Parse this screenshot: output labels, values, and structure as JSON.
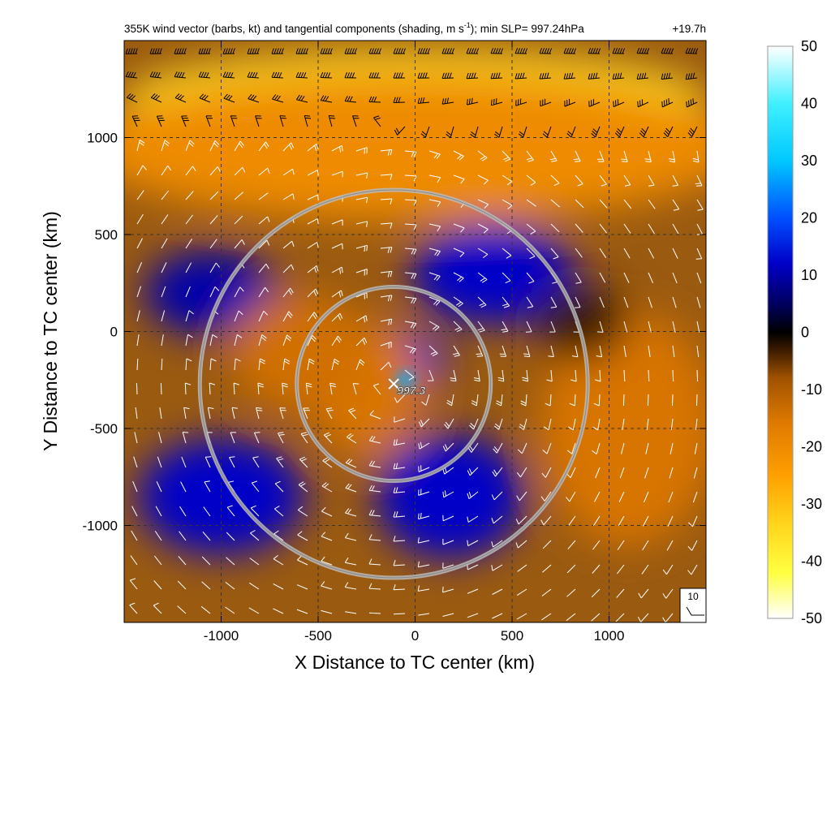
{
  "chart_data": {
    "type": "heatmap",
    "title": "355K wind vector (barbs, kt) and tangential components (shading, m s",
    "title_sup": "-1",
    "title_tail": "); min SLP= 997.24hPa",
    "forecast_hour": "+19.7h",
    "xlabel": "X Distance to TC center (km)",
    "ylabel": "Y Distance to TC center (km)",
    "xlim": [
      -1500,
      1500
    ],
    "ylim": [
      -1500,
      1500
    ],
    "xticks": [
      -1000,
      -500,
      0,
      500,
      1000
    ],
    "xtick_labels": [
      "-1000",
      "-500",
      "0",
      "500",
      "1000"
    ],
    "yticks": [
      -1000,
      -500,
      0,
      500,
      1000
    ],
    "ytick_labels": [
      "-1000",
      "-500",
      "0",
      "500",
      "1000"
    ],
    "grid": true,
    "colorbar": {
      "min": -50,
      "max": 50,
      "ticks": [
        50,
        40,
        30,
        20,
        10,
        0,
        -10,
        -20,
        -30,
        -40,
        -50
      ],
      "tick_labels": [
        "50",
        "40",
        "30",
        "20",
        "10",
        "0",
        "-10",
        "-20",
        "-30",
        "-40",
        "-50"
      ],
      "colors": [
        {
          "value": -50,
          "color": "#ffffff"
        },
        {
          "value": -42,
          "color": "#ffff40"
        },
        {
          "value": -33,
          "color": "#ffd21a"
        },
        {
          "value": -25,
          "color": "#ffa000"
        },
        {
          "value": -16,
          "color": "#e07a00"
        },
        {
          "value": -8,
          "color": "#a05200"
        },
        {
          "value": -3,
          "color": "#3a1a00"
        },
        {
          "value": 0,
          "color": "#000000"
        },
        {
          "value": 5,
          "color": "#000060"
        },
        {
          "value": 12,
          "color": "#0000c8"
        },
        {
          "value": 20,
          "color": "#0050ff"
        },
        {
          "value": 30,
          "color": "#00c8ff"
        },
        {
          "value": 40,
          "color": "#40f0ff"
        },
        {
          "value": 50,
          "color": "#ffffff"
        }
      ]
    },
    "center_marker": {
      "x": -110,
      "y": -270,
      "label": "997.3"
    },
    "circles": [
      {
        "cx": -110,
        "cy": -270,
        "r": 500
      },
      {
        "cx": -110,
        "cy": -270,
        "r": 1000
      }
    ],
    "reference_barb": {
      "label": "10"
    },
    "shading_features": [
      {
        "kind": "band",
        "value": -35,
        "cx": 0,
        "cy": 1200,
        "rx": 1500,
        "ry": 250
      },
      {
        "kind": "band",
        "value": -20,
        "cx": 0,
        "cy": 950,
        "rx": 1700,
        "ry": 380
      },
      {
        "kind": "blob",
        "value": 12,
        "cx": 400,
        "cy": 300,
        "rx": 420,
        "ry": 260
      },
      {
        "kind": "blob",
        "value": 10,
        "cx": -1050,
        "cy": 200,
        "rx": 350,
        "ry": 220
      },
      {
        "kind": "blob",
        "value": 12,
        "cx": -1000,
        "cy": -850,
        "rx": 430,
        "ry": 300
      },
      {
        "kind": "blob",
        "value": 12,
        "cx": 180,
        "cy": -850,
        "rx": 380,
        "ry": 320
      },
      {
        "kind": "blob",
        "value": 14,
        "cx": -40,
        "cy": -150,
        "rx": 200,
        "ry": 160
      },
      {
        "kind": "blob",
        "value": 28,
        "cx": -50,
        "cy": -250,
        "rx": 45,
        "ry": 40
      },
      {
        "kind": "blob",
        "value": -15,
        "cx": -250,
        "cy": -300,
        "rx": 300,
        "ry": 350
      },
      {
        "kind": "blob",
        "value": -15,
        "cx": 1100,
        "cy": -500,
        "rx": 450,
        "ry": 600
      },
      {
        "kind": "blob",
        "value": -3,
        "cx": 850,
        "cy": 50,
        "rx": 250,
        "ry": 200
      },
      {
        "kind": "blob",
        "value": -14,
        "cx": -600,
        "cy": -100,
        "rx": 350,
        "ry": 300
      }
    ]
  }
}
